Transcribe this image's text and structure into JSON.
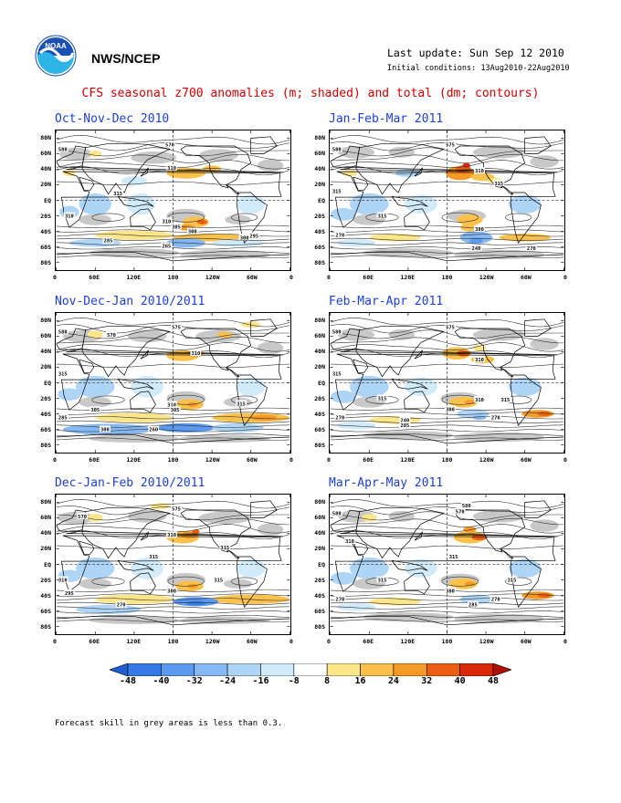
{
  "header": {
    "org": "NWS/NCEP",
    "last_update": "Last update: Sun Sep 12 2010",
    "initial_conditions": "Initial conditions: 13Aug2010-22Aug2010",
    "title": "CFS seasonal z700 anomalies (m; shaded) and total (dm; contours)"
  },
  "logo": {
    "icon": "noaa-logo-icon",
    "text": "NOAA"
  },
  "colors": {
    "title": "#d00000",
    "panel_title": "#1c3fd8",
    "grey_area": "#c8c8c8",
    "contour": "#303030"
  },
  "chart_data": [
    {
      "type": "heatmap",
      "title": "Oct-Nov-Dec 2010",
      "lat_ticks": [
        "80N",
        "60N",
        "40N",
        "20N",
        "EQ",
        "20S",
        "40S",
        "60S",
        "80S"
      ],
      "lon_ticks": [
        "0",
        "60E",
        "120E",
        "180",
        "120W",
        "60W",
        "0"
      ],
      "contour_labels": [
        {
          "text": "570",
          "lon": 175,
          "lat": 72
        },
        {
          "text": "580",
          "lon": 10,
          "lat": 66
        },
        {
          "text": "310",
          "lon": 178,
          "lat": 42
        },
        {
          "text": "315",
          "lon": 95,
          "lat": 9
        },
        {
          "text": "310",
          "lon": 170,
          "lat": -27
        },
        {
          "text": "305",
          "lon": 185,
          "lat": -34
        },
        {
          "text": "300",
          "lon": 210,
          "lat": -40
        },
        {
          "text": "295",
          "lon": 305,
          "lat": -46
        },
        {
          "text": "285",
          "lon": 80,
          "lat": -52
        },
        {
          "text": "265",
          "lon": 170,
          "lat": -59
        },
        {
          "text": "300",
          "lon": 290,
          "lat": -48
        },
        {
          "text": "310",
          "lon": 20,
          "lat": -20
        }
      ]
    },
    {
      "type": "heatmap",
      "title": "Jan-Feb-Mar 2011",
      "lat_ticks": [
        "80N",
        "60N",
        "40N",
        "20N",
        "EQ",
        "20S",
        "40S",
        "60S",
        "80S"
      ],
      "lon_ticks": [
        "0",
        "60E",
        "120E",
        "180",
        "120W",
        "60W",
        "0"
      ],
      "contour_labels": [
        {
          "text": "575",
          "lon": 185,
          "lat": 72
        },
        {
          "text": "580",
          "lon": 10,
          "lat": 66
        },
        {
          "text": "310",
          "lon": 230,
          "lat": 38
        },
        {
          "text": "315",
          "lon": 260,
          "lat": 22
        },
        {
          "text": "315",
          "lon": 10,
          "lat": 12
        },
        {
          "text": "315",
          "lon": 80,
          "lat": -20
        },
        {
          "text": "300",
          "lon": 230,
          "lat": -37
        },
        {
          "text": "270",
          "lon": 15,
          "lat": -45
        },
        {
          "text": "270",
          "lon": 310,
          "lat": -62
        },
        {
          "text": "240",
          "lon": 225,
          "lat": -62
        }
      ]
    },
    {
      "type": "heatmap",
      "title": "Nov-Dec-Jan 2010/2011",
      "lat_ticks": [
        "80N",
        "60N",
        "40N",
        "20N",
        "EQ",
        "20S",
        "40S",
        "60S",
        "80S"
      ],
      "lon_ticks": [
        "0",
        "60E",
        "120E",
        "180",
        "120W",
        "60W",
        "0"
      ],
      "contour_labels": [
        {
          "text": "575",
          "lon": 185,
          "lat": 72
        },
        {
          "text": "570",
          "lon": 85,
          "lat": 62
        },
        {
          "text": "580",
          "lon": 10,
          "lat": 66
        },
        {
          "text": "310",
          "lon": 215,
          "lat": 38
        },
        {
          "text": "315",
          "lon": 10,
          "lat": 12
        },
        {
          "text": "310",
          "lon": 178,
          "lat": -28
        },
        {
          "text": "305",
          "lon": 183,
          "lat": -35
        },
        {
          "text": "315",
          "lon": 285,
          "lat": -27
        },
        {
          "text": "305",
          "lon": 60,
          "lat": -35
        },
        {
          "text": "285",
          "lon": 10,
          "lat": -45
        },
        {
          "text": "260",
          "lon": 150,
          "lat": -60
        },
        {
          "text": "300",
          "lon": 75,
          "lat": -60
        }
      ]
    },
    {
      "type": "heatmap",
      "title": "Feb-Mar-Apr 2011",
      "lat_ticks": [
        "80N",
        "60N",
        "40N",
        "20N",
        "EQ",
        "20S",
        "40S",
        "60S",
        "80S"
      ],
      "lon_ticks": [
        "0",
        "60E",
        "120E",
        "180",
        "120W",
        "60W",
        "0"
      ],
      "contour_labels": [
        {
          "text": "575",
          "lon": 185,
          "lat": 72
        },
        {
          "text": "580",
          "lon": 10,
          "lat": 66
        },
        {
          "text": "310",
          "lon": 230,
          "lat": 30
        },
        {
          "text": "315",
          "lon": 10,
          "lat": 12
        },
        {
          "text": "315",
          "lon": 80,
          "lat": -20
        },
        {
          "text": "300",
          "lon": 185,
          "lat": -34
        },
        {
          "text": "310",
          "lon": 230,
          "lat": -22
        },
        {
          "text": "315",
          "lon": 270,
          "lat": -22
        },
        {
          "text": "270",
          "lon": 15,
          "lat": -45
        },
        {
          "text": "270",
          "lon": 255,
          "lat": -45
        },
        {
          "text": "240",
          "lon": 115,
          "lat": -48
        },
        {
          "text": "285",
          "lon": 115,
          "lat": -55
        }
      ]
    },
    {
      "type": "heatmap",
      "title": "Dec-Jan-Feb 2010/2011",
      "lat_ticks": [
        "80N",
        "60N",
        "40N",
        "20N",
        "EQ",
        "20S",
        "40S",
        "60S",
        "80S"
      ],
      "lon_ticks": [
        "0",
        "60E",
        "120E",
        "180",
        "120W",
        "60W",
        "0"
      ],
      "contour_labels": [
        {
          "text": "575",
          "lon": 185,
          "lat": 72
        },
        {
          "text": "570",
          "lon": 40,
          "lat": 62
        },
        {
          "text": "310",
          "lon": 178,
          "lat": 38
        },
        {
          "text": "315",
          "lon": 260,
          "lat": 22
        },
        {
          "text": "315",
          "lon": 150,
          "lat": 10
        },
        {
          "text": "310",
          "lon": 10,
          "lat": -20
        },
        {
          "text": "300",
          "lon": 178,
          "lat": -34
        },
        {
          "text": "315",
          "lon": 250,
          "lat": -20
        },
        {
          "text": "295",
          "lon": 20,
          "lat": -37
        },
        {
          "text": "270",
          "lon": 100,
          "lat": -52
        }
      ]
    },
    {
      "type": "heatmap",
      "title": "Mar-Apr-May 2011",
      "lat_ticks": [
        "80N",
        "60N",
        "40N",
        "20N",
        "EQ",
        "20S",
        "40S",
        "60S",
        "80S"
      ],
      "lon_ticks": [
        "0",
        "60E",
        "120E",
        "180",
        "120W",
        "60W",
        "0"
      ],
      "contour_labels": [
        {
          "text": "580",
          "lon": 210,
          "lat": 76
        },
        {
          "text": "570",
          "lon": 200,
          "lat": 68
        },
        {
          "text": "580",
          "lon": 10,
          "lat": 66
        },
        {
          "text": "310",
          "lon": 30,
          "lat": 30
        },
        {
          "text": "315",
          "lon": 190,
          "lat": 10
        },
        {
          "text": "315",
          "lon": 80,
          "lat": -20
        },
        {
          "text": "315",
          "lon": 280,
          "lat": -20
        },
        {
          "text": "300",
          "lon": 185,
          "lat": -34
        },
        {
          "text": "270",
          "lon": 15,
          "lat": -45
        },
        {
          "text": "270",
          "lon": 255,
          "lat": -45
        },
        {
          "text": "285",
          "lon": 220,
          "lat": -52
        }
      ]
    }
  ],
  "colorbar": {
    "labels": [
      "-48",
      "-40",
      "-32",
      "-24",
      "-16",
      "-8",
      "8",
      "16",
      "24",
      "32",
      "40",
      "48"
    ],
    "colors": [
      "#1f5fd2",
      "#3779e6",
      "#5b9af0",
      "#86b9f3",
      "#afd5f6",
      "#d2ebfa",
      "#ffffff",
      "#fde58a",
      "#fbc14b",
      "#f59a27",
      "#ec5f12",
      "#d82808",
      "#b01000"
    ]
  },
  "footnote": "Forecast skill in grey areas is less than 0.3."
}
